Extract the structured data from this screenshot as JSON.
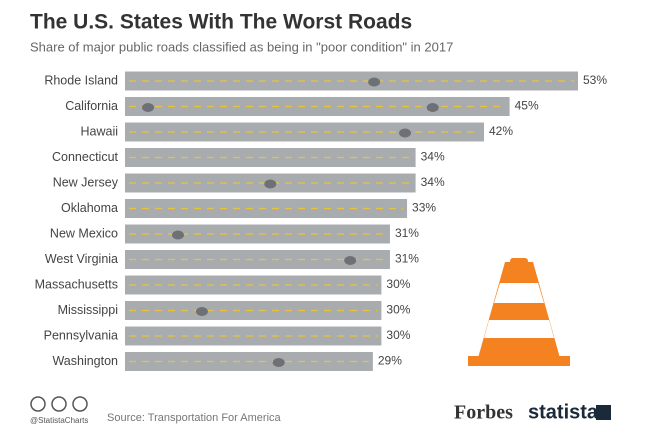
{
  "chart_data": {
    "type": "bar",
    "orientation": "horizontal",
    "title": "The U.S. States With The Worst Roads",
    "subtitle": "Share of major public roads classified as being in \"poor condition\" in 2017",
    "categories": [
      "Rhode Island",
      "California",
      "Hawaii",
      "Connecticut",
      "New Jersey",
      "Oklahoma",
      "New Mexico",
      "West Virginia",
      "Massachusetts",
      "Mississippi",
      "Pennsylvania",
      "Washington"
    ],
    "values": [
      53,
      45,
      42,
      34,
      34,
      33,
      31,
      31,
      30,
      30,
      30,
      29
    ],
    "value_labels": [
      "53%",
      "45%",
      "42%",
      "34%",
      "34%",
      "33%",
      "31%",
      "31%",
      "30%",
      "30%",
      "30%",
      "29%"
    ],
    "color": "#a9acaf",
    "source": "Source: Transportation For America",
    "handle": "@StatistaCharts",
    "brands": [
      "Forbes",
      "statista"
    ]
  }
}
